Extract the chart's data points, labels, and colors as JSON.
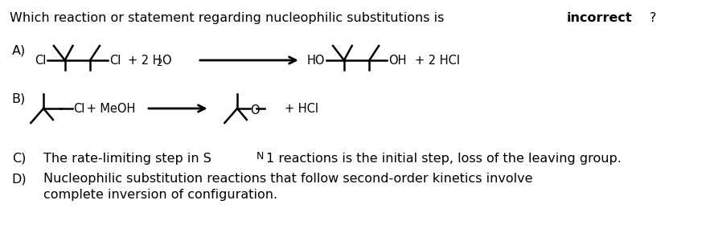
{
  "title_text": "Which reaction or statement regarding nucleophilic substitutions is ",
  "title_bold": "incorrect",
  "title_bold_suffix": "?",
  "bg_color": "#ffffff",
  "text_color": "#000000",
  "figsize": [
    8.88,
    2.9
  ],
  "dpi": 100,
  "label_A": "A)",
  "label_B": "B)",
  "label_C": "C)",
  "label_D": "D)",
  "text_D1": "Nucleophilic substitution reactions that follow second-order kinetics involve",
  "text_D2": "complete inversion of configuration.",
  "font_size_title": 11.5,
  "font_size_body": 11.5,
  "font_size_mol": 10.5
}
